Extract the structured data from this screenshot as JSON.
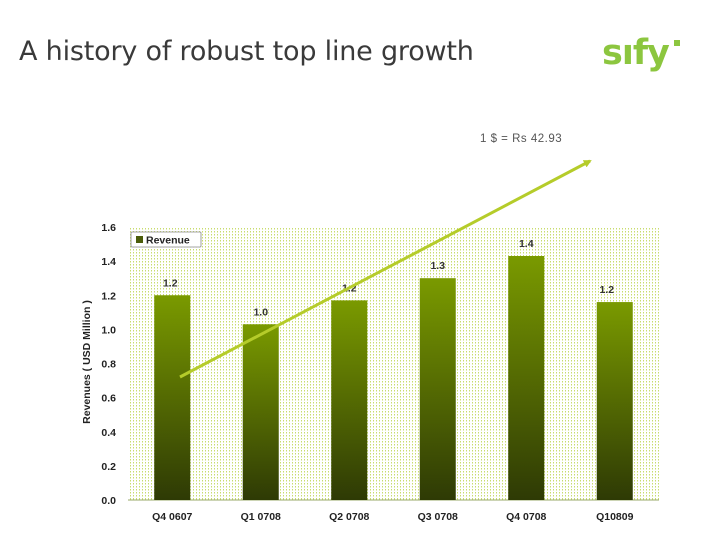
{
  "slide": {
    "title": "A history of robust top line growth",
    "logo_text": "sıfy",
    "rate_note": "1 $ = Rs 42.93"
  },
  "colors": {
    "bar_top": "#7a9a00",
    "bar_bottom": "#2e3a05",
    "trend_line": "#b5cc2a",
    "grid_stripes": "#c8dc6e",
    "logo": "#8cc63f"
  },
  "chart_data": {
    "type": "bar",
    "ylabel": "Revenues ( USD Million )",
    "ylim": [
      0,
      1.6
    ],
    "yticks": [
      "0.0",
      "0.2",
      "0.4",
      "0.6",
      "0.8",
      "1.0",
      "1.2",
      "1.4",
      "1.6"
    ],
    "categories": [
      "Q4 0607",
      "Q1 0708",
      "Q2 0708",
      "Q3 0708",
      "Q4 0708",
      "Q10809"
    ],
    "series": [
      {
        "name": "Revenue",
        "values": [
          1.2,
          1.03,
          1.17,
          1.3,
          1.43,
          1.16
        ],
        "labels": [
          "1.2",
          "1.0",
          "1.2",
          "1.3",
          "1.4",
          "1.2"
        ]
      }
    ],
    "legend": "top-left",
    "trend_arrow": "rising"
  }
}
